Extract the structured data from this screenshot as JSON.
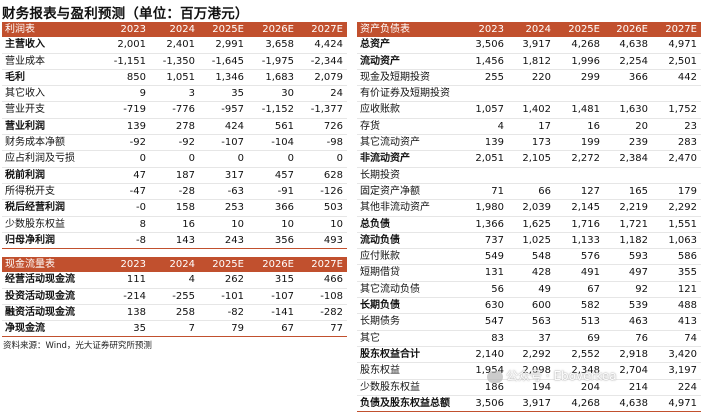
{
  "title": "财务报表与盈利预测（单位：百万港元）",
  "years": [
    "2023",
    "2024",
    "2025E",
    "2026E",
    "2027E"
  ],
  "income": {
    "header": "利润表",
    "rows": [
      {
        "label": "主营收入",
        "values": [
          "2,001",
          "2,401",
          "2,991",
          "3,658",
          "4,424"
        ],
        "bold": true
      },
      {
        "label": "营业成本",
        "values": [
          "-1,151",
          "-1,350",
          "-1,645",
          "-1,975",
          "-2,344"
        ],
        "bold": false
      },
      {
        "label": "毛利",
        "values": [
          "850",
          "1,051",
          "1,346",
          "1,683",
          "2,079"
        ],
        "bold": true
      },
      {
        "label": "其它收入",
        "values": [
          "9",
          "3",
          "35",
          "30",
          "24"
        ],
        "bold": false
      },
      {
        "label": "营业开支",
        "values": [
          "-719",
          "-776",
          "-957",
          "-1,152",
          "-1,377"
        ],
        "bold": false
      },
      {
        "label": "营业利润",
        "values": [
          "139",
          "278",
          "424",
          "561",
          "726"
        ],
        "bold": true
      },
      {
        "label": "财务成本净额",
        "values": [
          "-92",
          "-92",
          "-107",
          "-104",
          "-98"
        ],
        "bold": false
      },
      {
        "label": "应占利润及亏损",
        "values": [
          "0",
          "0",
          "0",
          "0",
          "0"
        ],
        "bold": false
      },
      {
        "label": "税前利润",
        "values": [
          "47",
          "187",
          "317",
          "457",
          "628"
        ],
        "bold": true
      },
      {
        "label": "所得税开支",
        "values": [
          "-47",
          "-28",
          "-63",
          "-91",
          "-126"
        ],
        "bold": false
      },
      {
        "label": "税后经营利润",
        "values": [
          "-0",
          "158",
          "253",
          "366",
          "503"
        ],
        "bold": true
      },
      {
        "label": "少数股东权益",
        "values": [
          "8",
          "16",
          "10",
          "10",
          "10"
        ],
        "bold": false
      },
      {
        "label": "归母净利润",
        "values": [
          "-8",
          "143",
          "243",
          "356",
          "493"
        ],
        "bold": true
      }
    ]
  },
  "cashflow": {
    "header": "现金流量表",
    "rows": [
      {
        "label": "经营活动现金流",
        "values": [
          "111",
          "4",
          "262",
          "315",
          "466"
        ],
        "bold": true
      },
      {
        "label": "投资活动现金流",
        "values": [
          "-214",
          "-255",
          "-101",
          "-107",
          "-108"
        ],
        "bold": true
      },
      {
        "label": "融资活动现金流",
        "values": [
          "138",
          "258",
          "-82",
          "-141",
          "-282"
        ],
        "bold": true
      },
      {
        "label": "净现金流",
        "values": [
          "35",
          "7",
          "79",
          "67",
          "77"
        ],
        "bold": true
      }
    ]
  },
  "balance": {
    "header": "资产负债表",
    "rows": [
      {
        "label": "总资产",
        "values": [
          "3,506",
          "3,917",
          "4,268",
          "4,638",
          "4,971"
        ],
        "bold": true
      },
      {
        "label": "流动资产",
        "values": [
          "1,456",
          "1,812",
          "1,996",
          "2,254",
          "2,501"
        ],
        "bold": true
      },
      {
        "label": "现金及短期投资",
        "values": [
          "255",
          "220",
          "299",
          "366",
          "442"
        ],
        "bold": false
      },
      {
        "label": "有价证券及短期投资",
        "values": [
          "",
          "",
          "",
          "",
          ""
        ],
        "bold": false
      },
      {
        "label": "应收账款",
        "values": [
          "1,057",
          "1,402",
          "1,481",
          "1,630",
          "1,752"
        ],
        "bold": false
      },
      {
        "label": "存货",
        "values": [
          "4",
          "17",
          "16",
          "20",
          "23"
        ],
        "bold": false
      },
      {
        "label": "其它流动资产",
        "values": [
          "139",
          "173",
          "199",
          "239",
          "283"
        ],
        "bold": false
      },
      {
        "label": "非流动资产",
        "values": [
          "2,051",
          "2,105",
          "2,272",
          "2,384",
          "2,470"
        ],
        "bold": true
      },
      {
        "label": "长期投资",
        "values": [
          "",
          "",
          "",
          "",
          ""
        ],
        "bold": false
      },
      {
        "label": "固定资产净额",
        "values": [
          "71",
          "66",
          "127",
          "165",
          "179"
        ],
        "bold": false
      },
      {
        "label": "其他非流动资产",
        "values": [
          "1,980",
          "2,039",
          "2,145",
          "2,219",
          "2,292"
        ],
        "bold": false
      },
      {
        "label": "总负债",
        "values": [
          "1,366",
          "1,625",
          "1,716",
          "1,721",
          "1,551"
        ],
        "bold": true
      },
      {
        "label": "流动负债",
        "values": [
          "737",
          "1,025",
          "1,133",
          "1,182",
          "1,063"
        ],
        "bold": true
      },
      {
        "label": "应付账款",
        "values": [
          "549",
          "548",
          "576",
          "593",
          "586"
        ],
        "bold": false
      },
      {
        "label": "短期借贷",
        "values": [
          "131",
          "428",
          "491",
          "497",
          "355"
        ],
        "bold": false
      },
      {
        "label": "其它流动负债",
        "values": [
          "56",
          "49",
          "67",
          "92",
          "121"
        ],
        "bold": false
      },
      {
        "label": "长期负债",
        "values": [
          "630",
          "600",
          "582",
          "539",
          "488"
        ],
        "bold": true
      },
      {
        "label": "长期债务",
        "values": [
          "547",
          "563",
          "513",
          "463",
          "413"
        ],
        "bold": false
      },
      {
        "label": "其它",
        "values": [
          "83",
          "37",
          "69",
          "76",
          "74"
        ],
        "bold": false
      },
      {
        "label": "股东权益合计",
        "values": [
          "2,140",
          "2,292",
          "2,552",
          "2,918",
          "3,420"
        ],
        "bold": true
      },
      {
        "label": "股东权益",
        "values": [
          "1,954",
          "2,098",
          "2,348",
          "2,704",
          "3,197"
        ],
        "bold": false
      },
      {
        "label": "少数股东权益",
        "values": [
          "186",
          "194",
          "204",
          "214",
          "224"
        ],
        "bold": false
      },
      {
        "label": "负债及股东权益总额",
        "values": [
          "3,506",
          "3,917",
          "4,268",
          "4,638",
          "4,971"
        ],
        "bold": true
      }
    ]
  },
  "source": "资料来源：Wind，光大证券研究所预测",
  "watermark": "公众号 · Eboverkea",
  "colors": {
    "header_bg": "#c1502e",
    "header_text": "#ffffff",
    "row_line": "#e6e6e6"
  }
}
